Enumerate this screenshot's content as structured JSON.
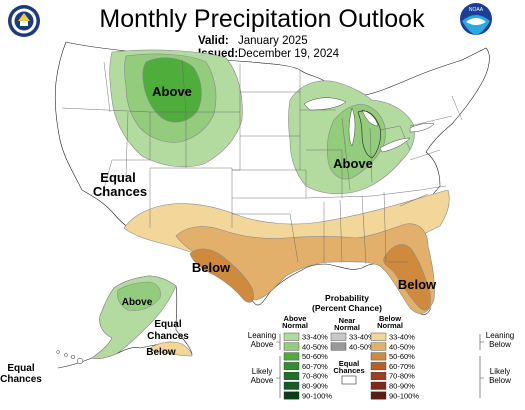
{
  "header": {
    "title": "Monthly Precipitation Outlook",
    "valid_label": "Valid:",
    "valid_value": "January 2025",
    "issued_label": "Issued:",
    "issued_value": "December 19, 2024"
  },
  "logos": {
    "left": "U.S. Department of Commerce seal",
    "right": "NOAA"
  },
  "map_labels": {
    "northern_plains": "Above",
    "great_lakes": "Above",
    "equal_chances_line1": "Equal",
    "equal_chances_line2": "Chances",
    "south_central": "Below",
    "southeast": "Below",
    "alaska_above": "Above",
    "alaska_equal_line1": "Equal",
    "alaska_equal_line2": "Chances",
    "alaska_below": "Below",
    "hawaii_equal_line1": "Equal",
    "hawaii_equal_line2": "Chances"
  },
  "legend": {
    "title_line1": "Probability",
    "title_line2": "(Percent Chance)",
    "col_above_line1": "Above",
    "col_above_line2": "Normal",
    "col_near_line1": "Near",
    "col_near_line2": "Normal",
    "col_below_line1": "Below",
    "col_below_line2": "Normal",
    "leaning_above_line1": "Leaning",
    "leaning_above_line2": "Above",
    "likely_above_line1": "Likely",
    "likely_above_line2": "Above",
    "leaning_below_line1": "Leaning",
    "leaning_below_line2": "Below",
    "likely_below_line1": "Likely",
    "likely_below_line2": "Below",
    "equal_chances_line1": "Equal",
    "equal_chances_line2": "Chances",
    "above_ranges": [
      "33-40%",
      "40-50%",
      "50-60%",
      "60-70%",
      "70-80%",
      "80-90%",
      "90-100%"
    ],
    "above_colors": [
      "#b3dba0",
      "#93cc7c",
      "#4fad3b",
      "#338d32",
      "#226f2c",
      "#165a25",
      "#0c3d18"
    ],
    "near_ranges": [
      "33-40%",
      "40-50%"
    ],
    "near_colors": [
      "#c8c8c8",
      "#999999"
    ],
    "below_ranges": [
      "33-40%",
      "40-50%",
      "50-60%",
      "60-70%",
      "70-80%",
      "80-90%",
      "90-100%"
    ],
    "below_colors": [
      "#f3d79a",
      "#e2b06b",
      "#cf8a3e",
      "#b85f2a",
      "#9c3f22",
      "#7d2b1a",
      "#5a1d12"
    ]
  }
}
